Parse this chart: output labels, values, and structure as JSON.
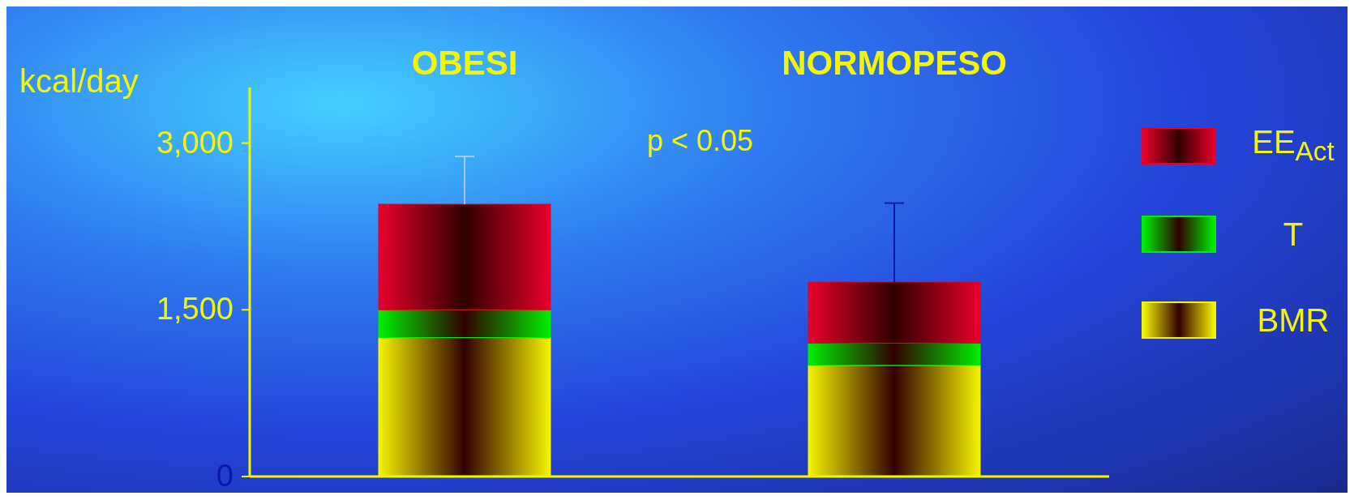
{
  "chart_data": {
    "type": "bar",
    "stacked": true,
    "ylabel": "kcal/day",
    "categories": [
      "OBESI",
      "NORMOPESO"
    ],
    "series": [
      {
        "name": "BMR",
        "color": "#f5f500",
        "values": [
          1250,
          1000
        ]
      },
      {
        "name": "T",
        "color": "#00f000",
        "values": [
          250,
          200
        ]
      },
      {
        "name": "EE$_{Act}$",
        "color": "#e8002a",
        "values": [
          950,
          550
        ],
        "errors": [
          [
            2450,
            2880
          ],
          [
            1750,
            2460
          ]
        ]
      }
    ],
    "ylim": [
      0,
      3500
    ],
    "yticks": [
      {
        "value": 0,
        "label": "0"
      },
      {
        "value": 1500,
        "label": "1,500"
      },
      {
        "value": 3000,
        "label": "3,000"
      }
    ],
    "grid": false,
    "legend": "right",
    "annotations": [
      "p < 0.05"
    ]
  }
}
